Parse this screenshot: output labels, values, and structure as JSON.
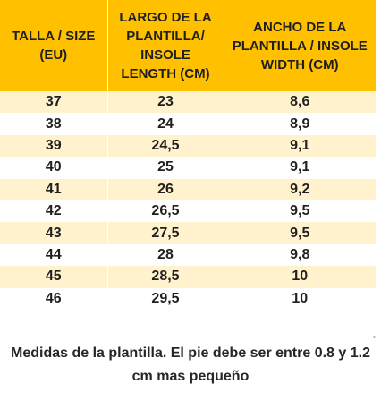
{
  "table": {
    "headers": [
      "TALLA / SIZE (EU)",
      "LARGO DE LA PLANTILLA/ INSOLE LENGTH (CM)",
      "ANCHO DE LA PLANTILLA / INSOLE WIDTH (CM)"
    ],
    "rows": [
      [
        "37",
        "23",
        "8,6"
      ],
      [
        "38",
        "24",
        "8,9"
      ],
      [
        "39",
        "24,5",
        "9,1"
      ],
      [
        "40",
        "25",
        "9,1"
      ],
      [
        "41",
        "26",
        "9,2"
      ],
      [
        "42",
        "26,5",
        "9,5"
      ],
      [
        "43",
        "27,5",
        "9,5"
      ],
      [
        "44",
        "28",
        "9,8"
      ],
      [
        "45",
        "28,5",
        "10"
      ],
      [
        "46",
        "29,5",
        "10"
      ]
    ],
    "header_color": "#FFC000",
    "band_color": "#FFF2CC"
  },
  "marker": "▪",
  "caption": "Medidas de la plantilla. El pie debe ser entre 0.8 y 1.2 cm mas pequeño"
}
